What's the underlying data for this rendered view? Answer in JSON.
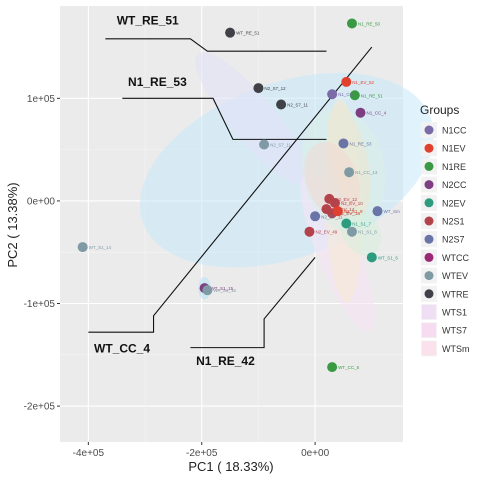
{
  "chart_data": {
    "type": "scatter",
    "xlabel": "PC1 ( 18.33%)",
    "ylabel": "PC2 ( 13.38%)",
    "xlim": [
      -450000,
      155000
    ],
    "ylim": [
      -235000,
      190000
    ],
    "x_ticks": [
      {
        "value": -400000,
        "label": "-4e+05"
      },
      {
        "value": -200000,
        "label": "-2e+05"
      },
      {
        "value": 0,
        "label": "0e+00"
      }
    ],
    "y_ticks": [
      {
        "value": 100000,
        "label": "1e+05"
      },
      {
        "value": 0,
        "label": "0e+00"
      },
      {
        "value": -100000,
        "label": "-1e+05"
      },
      {
        "value": -200000,
        "label": "-2e+05"
      }
    ],
    "grid": true,
    "legend": {
      "title": "Groups",
      "placement": "right",
      "items": [
        {
          "name": "N1CC",
          "color": "#7b6aa8",
          "shape": "point"
        },
        {
          "name": "N1EV",
          "color": "#e0402e",
          "shape": "point"
        },
        {
          "name": "N1RE",
          "color": "#3a9a44",
          "shape": "point"
        },
        {
          "name": "N2CC",
          "color": "#7e3f82",
          "shape": "point"
        },
        {
          "name": "N2EV",
          "color": "#2d9b80",
          "shape": "point"
        },
        {
          "name": "N2S1",
          "color": "#b3424a",
          "shape": "point"
        },
        {
          "name": "N2S7",
          "color": "#6a74a6",
          "shape": "point"
        },
        {
          "name": "WTCC",
          "color": "#9a2a76",
          "shape": "point"
        },
        {
          "name": "WTEV",
          "color": "#7f9aa4",
          "shape": "point"
        },
        {
          "name": "WTRE",
          "color": "#404048",
          "shape": "point"
        },
        {
          "name": "WTS1",
          "color": "#f0dff4",
          "shape": "fill"
        },
        {
          "name": "WTS7",
          "color": "#f6dbf1",
          "shape": "fill"
        },
        {
          "name": "WTSm",
          "color": "#fbe1ec",
          "shape": "fill"
        }
      ]
    },
    "ellipses": [
      {
        "cx": -50000,
        "cy": 30000,
        "rx": 270000,
        "ry": 85000,
        "angle": 20,
        "color": "#c6e9fa"
      },
      {
        "cx": -110000,
        "cy": 80000,
        "rx": 150000,
        "ry": 22000,
        "angle": -50,
        "color": "#e2e0f8"
      },
      {
        "cx": 40000,
        "cy": -50000,
        "rx": 150000,
        "ry": 20000,
        "angle": -68,
        "color": "#f8e1f6"
      },
      {
        "cx": 50000,
        "cy": 0,
        "rx": 180000,
        "ry": 18000,
        "angle": -88,
        "color": "#f6e9d2"
      },
      {
        "cx": 50000,
        "cy": 30000,
        "rx": 110000,
        "ry": 40000,
        "angle": -80,
        "color": "#d8efe6"
      },
      {
        "cx": 60000,
        "cy": 40000,
        "rx": 100000,
        "ry": 18000,
        "angle": -78,
        "color": "#efe6cf"
      },
      {
        "cx": 30000,
        "cy": 20000,
        "rx": 70000,
        "ry": 25000,
        "angle": -70,
        "color": "#f3d9d4"
      },
      {
        "cx": 80000,
        "cy": -30000,
        "rx": 45000,
        "ry": 18000,
        "angle": -60,
        "color": "#d6eedd"
      },
      {
        "cx": -195000,
        "cy": -85000,
        "rx": 11000,
        "ry": 11000,
        "angle": 0,
        "color": "#b7e2f4"
      }
    ],
    "points": [
      {
        "x": -150000,
        "y": 164000,
        "label": "WT_RE_51",
        "color": "#404048"
      },
      {
        "x": 65000,
        "y": 173000,
        "label": "N1_RE_50",
        "color": "#3a9a44"
      },
      {
        "x": 55000,
        "y": 116000,
        "label": "N1_EV_52",
        "color": "#e0402e"
      },
      {
        "x": 70000,
        "y": 103000,
        "label": "N1_RE_51",
        "color": "#3a9a44"
      },
      {
        "x": 30000,
        "y": 104000,
        "label": "N1_CC",
        "color": "#7b6aa8"
      },
      {
        "x": -100000,
        "y": 110000,
        "label": "N2_S7_12",
        "color": "#404048"
      },
      {
        "x": -60000,
        "y": 94000,
        "label": "N2_S7_11",
        "color": "#404048"
      },
      {
        "x": 80000,
        "y": 86000,
        "label": "N1_CC_4",
        "color": "#7e3f82"
      },
      {
        "x": -90000,
        "y": 55000,
        "label": "N2_S7_11",
        "color": "#7f9aa4"
      },
      {
        "x": 50000,
        "y": 56000,
        "label": "N1_RE_53",
        "color": "#6a74a6"
      },
      {
        "x": 60000,
        "y": 28000,
        "label": "N1_CC_13",
        "color": "#7f9aa4"
      },
      {
        "x": 25000,
        "y": 2000,
        "label": "N2_EV_12",
        "color": "#b3424a"
      },
      {
        "x": 35000,
        "y": -2000,
        "label": "N2_EV_10",
        "color": "#b3424a"
      },
      {
        "x": 20000,
        "y": -8000,
        "label": "N2_EV_14",
        "color": "#b3424a"
      },
      {
        "x": 30000,
        "y": -12000,
        "label": "N2_EV_13",
        "color": "#b3424a"
      },
      {
        "x": 40000,
        "y": -10000,
        "label": "N2_S1_9",
        "color": "#e0402e"
      },
      {
        "x": 110000,
        "y": -10000,
        "label": "WT_Sm",
        "color": "#6a74a6"
      },
      {
        "x": 0,
        "y": -15000,
        "label": "N2_EV_11",
        "color": "#6a74a6"
      },
      {
        "x": 55000,
        "y": -22000,
        "label": "N1_S1_7",
        "color": "#2d9b80"
      },
      {
        "x": 65000,
        "y": -30000,
        "label": "N1_S1_8",
        "color": "#7f9aa4"
      },
      {
        "x": -10000,
        "y": -30000,
        "label": "N2_EV_49",
        "color": "#b3424a"
      },
      {
        "x": 100000,
        "y": -55000,
        "label": "WT_S1_6",
        "color": "#2d9b80"
      },
      {
        "x": -410000,
        "y": -45000,
        "label": "WT_S1_14",
        "color": "#7f9aa4"
      },
      {
        "x": -195000,
        "y": -85000,
        "label": "WT_S1_15",
        "color": "#7e3f82"
      },
      {
        "x": -190000,
        "y": -87000,
        "label": "WT_S1_16",
        "color": "#7f9aa4"
      },
      {
        "x": 30000,
        "y": -162000,
        "label": "WT_CC_5",
        "color": "#3a9a44"
      }
    ],
    "annotations": [
      {
        "text": "WT_RE_51",
        "path": [
          [
            -370000,
            158000
          ],
          [
            -220000,
            158000
          ],
          [
            -190000,
            146000
          ],
          [
            20000,
            146000
          ]
        ],
        "label_at": [
          -350000,
          172000
        ]
      },
      {
        "text": "N1_RE_53",
        "path": [
          [
            -340000,
            100000
          ],
          [
            -180000,
            100000
          ],
          [
            -145000,
            60000
          ],
          [
            20000,
            60000
          ]
        ],
        "label_at": [
          -330000,
          112000
        ]
      },
      {
        "text": "WT_CC_4",
        "path": [
          [
            -400000,
            -128000
          ],
          [
            -285000,
            -128000
          ],
          [
            -285000,
            -112000
          ],
          [
            100000,
            150000
          ]
        ],
        "label_at": [
          -390000,
          -148000
        ]
      },
      {
        "text": "N1_RE_42",
        "path": [
          [
            -220000,
            -143000
          ],
          [
            -90000,
            -143000
          ],
          [
            -90000,
            -115000
          ],
          [
            0,
            -55000
          ]
        ],
        "label_at": [
          -210000,
          -160000
        ]
      }
    ]
  }
}
